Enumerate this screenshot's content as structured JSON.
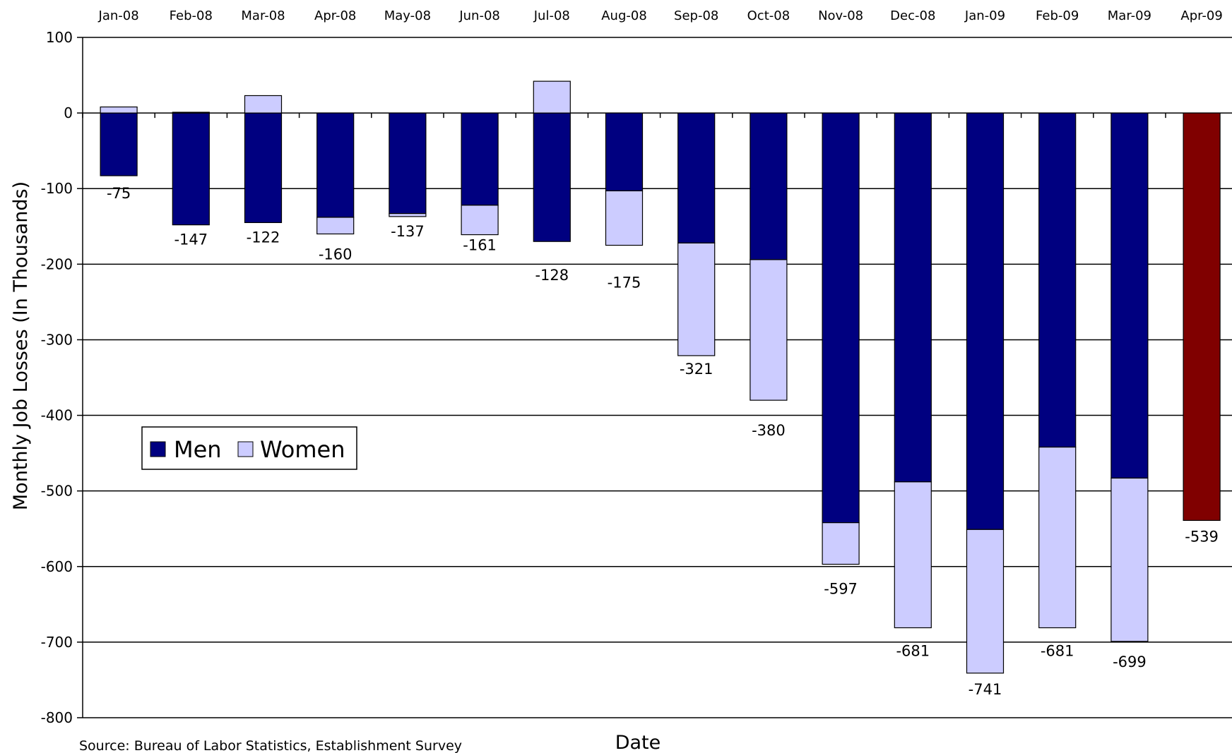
{
  "chart_data": {
    "type": "bar",
    "stacked": true,
    "categories": [
      "Jan-08",
      "Feb-08",
      "Mar-08",
      "Apr-08",
      "May-08",
      "Jun-08",
      "Jul-08",
      "Aug-08",
      "Sep-08",
      "Oct-08",
      "Nov-08",
      "Dec-08",
      "Jan-09",
      "Feb-09",
      "Mar-09",
      "Apr-09"
    ],
    "series": [
      {
        "name": "Men",
        "color": "#000080",
        "values": [
          -83,
          -148,
          -145,
          -138,
          -133,
          -122,
          -170,
          -103,
          -172,
          -194,
          -542,
          -488,
          -551,
          -442,
          -483,
          -539
        ]
      },
      {
        "name": "Women",
        "color": "#ccccff",
        "values": [
          8,
          1,
          23,
          -22,
          -4,
          -39,
          42,
          -72,
          -149,
          -186,
          -55,
          -193,
          -190,
          -239,
          -216,
          null
        ]
      }
    ],
    "highlight": {
      "category": "Apr-09",
      "color": "#800000"
    },
    "totals": [
      -75,
      -147,
      -122,
      -160,
      -137,
      -161,
      -128,
      -175,
      -321,
      -380,
      -597,
      -681,
      -741,
      -681,
      -699,
      -539
    ],
    "ylabel": "Monthly Job Losses (In Thousands)",
    "xlabel": "Date",
    "ylim": [
      -800,
      100
    ],
    "yticks": [
      100,
      0,
      -100,
      -200,
      -300,
      -400,
      -500,
      -600,
      -700,
      -800
    ],
    "grid": true,
    "legend_position": "left-middle",
    "source": "Source: Bureau of Labor Statistics, Establishment Survey"
  }
}
